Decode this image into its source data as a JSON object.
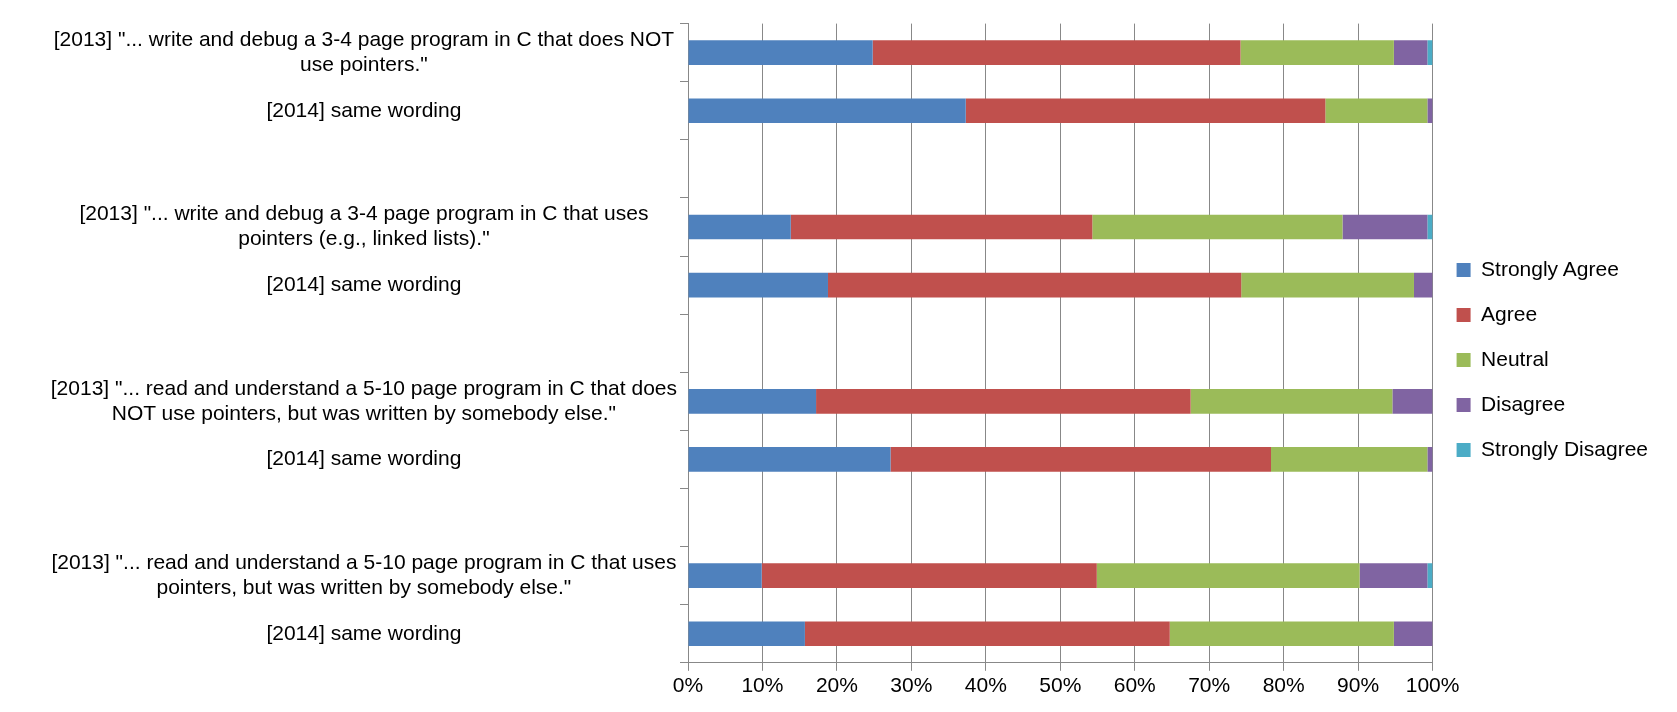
{
  "chart_data": {
    "type": "bar",
    "orientation": "horizontal",
    "stacked": true,
    "categories": [
      "[2013] \"... write and debug a 3-4 page program in C that does NOT use pointers.\"",
      "[2014] same wording",
      null,
      "[2013] \"... write and debug a 3-4 page program in C that uses pointers (e.g., linked lists).\"",
      "[2014] same wording",
      null,
      "[2013] \"... read and understand a 5-10 page program in C that does NOT use pointers, but was written by somebody else.\"",
      "[2014] same wording",
      null,
      "[2013] \"... read and understand a 5-10 page program in C that uses pointers, but was written by somebody else.\"",
      "[2014] same wording"
    ],
    "series": [
      {
        "name": "Strongly Agree",
        "color": "#4f81bd",
        "values": [
          24.8,
          37.3,
          null,
          13.8,
          18.8,
          null,
          17.2,
          27.2,
          null,
          9.9,
          15.7
        ]
      },
      {
        "name": "Agree",
        "color": "#c0504d",
        "values": [
          49.4,
          48.3,
          null,
          40.5,
          55.5,
          null,
          50.3,
          51.1,
          null,
          45.0,
          49.0
        ]
      },
      {
        "name": "Neutral",
        "color": "#9bbb59",
        "values": [
          20.6,
          13.7,
          null,
          33.6,
          23.2,
          null,
          27.1,
          21.0,
          null,
          35.3,
          30.1
        ]
      },
      {
        "name": "Disagree",
        "color": "#8064a2",
        "values": [
          4.5,
          0.7,
          null,
          11.4,
          2.5,
          null,
          5.4,
          0.7,
          null,
          9.1,
          5.2
        ]
      },
      {
        "name": "Strongly Disagree",
        "color": "#4bacc6",
        "values": [
          0.7,
          0,
          null,
          0.7,
          0,
          null,
          0,
          0,
          null,
          0.7,
          0
        ]
      }
    ],
    "xlim": [
      0,
      100
    ],
    "xticks": [
      {
        "value": 0,
        "label": "0%"
      },
      {
        "value": 10,
        "label": "10%"
      },
      {
        "value": 20,
        "label": "20%"
      },
      {
        "value": 30,
        "label": "30%"
      },
      {
        "value": 40,
        "label": "40%"
      },
      {
        "value": 50,
        "label": "50%"
      },
      {
        "value": 60,
        "label": "60%"
      },
      {
        "value": 70,
        "label": "70%"
      },
      {
        "value": 80,
        "label": "80%"
      },
      {
        "value": 90,
        "label": "90%"
      },
      {
        "value": 100,
        "label": "100%"
      }
    ],
    "grid": "x",
    "legend": "right"
  }
}
